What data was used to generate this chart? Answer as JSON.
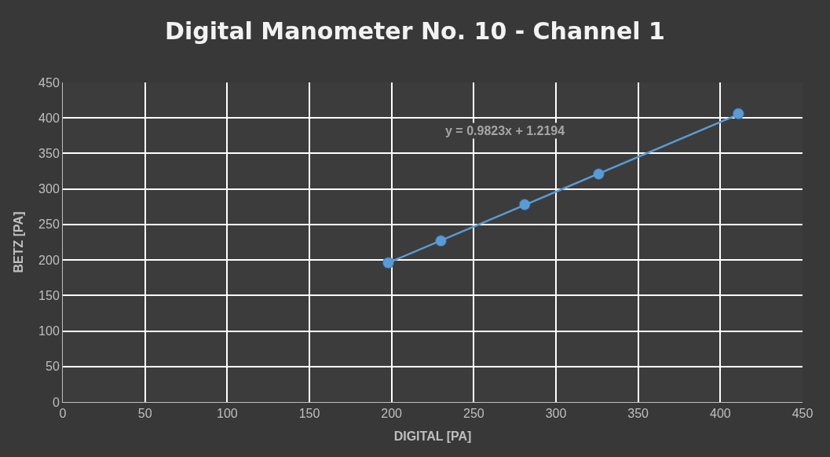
{
  "chart_data": {
    "type": "scatter",
    "title": "Digital Manometer No. 10 - Channel 1",
    "xlabel": "DIGITAL [PA]",
    "ylabel": "BETZ [PA]",
    "series": [
      {
        "color": "#5b9bd5",
        "x": [
          198,
          230,
          281,
          326,
          411
        ],
        "values": [
          196,
          227,
          278,
          321,
          406
        ],
        "marker": "circle"
      },
      {
        "type": "line",
        "color": "#5b9bd5",
        "x": [
          198,
          411
        ],
        "values": [
          196,
          405
        ],
        "line_style": "solid"
      }
    ],
    "annotations": [
      "y = 0.9823x + 1.2194"
    ],
    "xlim": [
      0,
      450
    ],
    "xticks": [
      0,
      50,
      100,
      150,
      200,
      250,
      300,
      350,
      400,
      450
    ],
    "ylim": [
      0,
      450
    ],
    "yticks": [
      0,
      50,
      100,
      150,
      200,
      250,
      300,
      350,
      400,
      450
    ],
    "grid": true
  }
}
